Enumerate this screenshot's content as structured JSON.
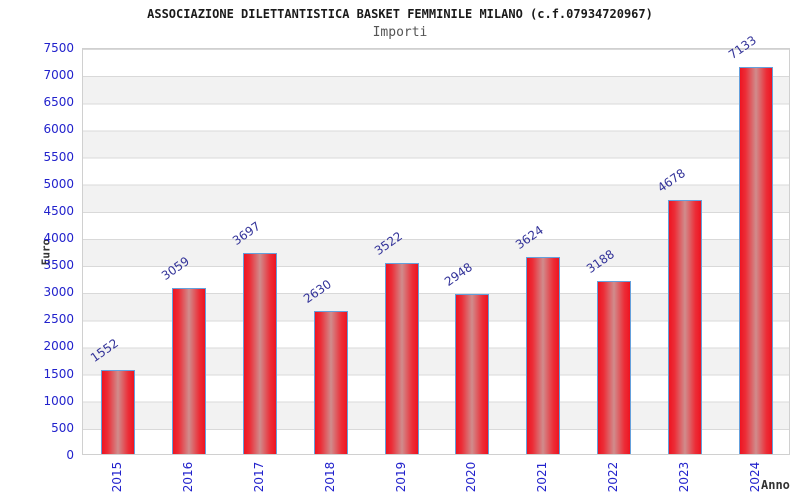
{
  "chart_data": {
    "type": "bar",
    "title": "ASSOCIAZIONE DILETTANTISTICA BASKET FEMMINILE MILANO (c.f.07934720967)",
    "subtitle": "Importi",
    "xlabel": "Anno",
    "ylabel": "Euro",
    "categories": [
      "2015",
      "2016",
      "2017",
      "2018",
      "2019",
      "2020",
      "2021",
      "2022",
      "2023",
      "2024"
    ],
    "values": [
      1552,
      3059,
      3697,
      2630,
      3522,
      2948,
      3624,
      3188,
      4678,
      7133
    ],
    "ylim": [
      0,
      7500
    ],
    "ytick_step": 500,
    "ytick_labels": [
      "0",
      "500",
      "1000",
      "1500",
      "2000",
      "2500",
      "3000",
      "3500",
      "4000",
      "4500",
      "5000",
      "5500",
      "6000",
      "6500",
      "7000",
      "7500"
    ],
    "grid": true,
    "legend": null,
    "colors": {
      "bar_edge": "#ee1421",
      "bar_mid": "#d08c8c",
      "bar_border": "#64a0dc",
      "tick_label": "#2222cc",
      "value_label": "#333399",
      "band_light": "#ffffff",
      "band_dark": "#f2f2f2",
      "title": "#1a1a1a",
      "subtitle": "#555555"
    }
  }
}
